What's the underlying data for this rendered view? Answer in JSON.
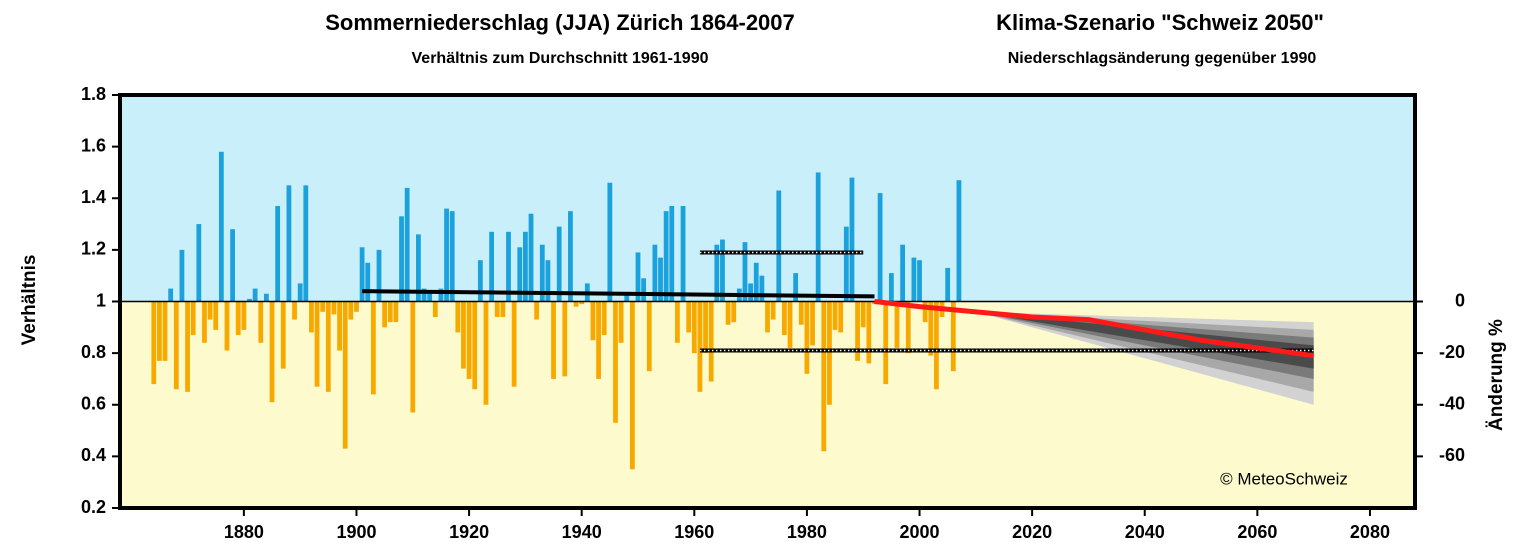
{
  "chart_data": {
    "type": "bar",
    "title": "Sommerniederschlag (JJA) Zürich 1864-2007",
    "subtitle": "Verhältnis zum Durchschnitt 1961-1990",
    "title2": "Klima-Szenario \"Schweiz 2050\"",
    "subtitle2": "Niederschlagsänderung gegenüber 1990",
    "ylabel": "Verhältnis",
    "y2label": "Änderung %",
    "annotation": "© MeteoSchweiz",
    "xlim": [
      1858,
      2088
    ],
    "xticks": [
      1880,
      1900,
      1920,
      1940,
      1960,
      1980,
      2000,
      2020,
      2040,
      2060,
      2080
    ],
    "ylim": [
      0.2,
      1.8
    ],
    "yticks": [
      0.2,
      0.4,
      0.6,
      0.8,
      1,
      1.2,
      1.4,
      1.6,
      1.8
    ],
    "y2lim": [
      -80,
      80
    ],
    "y2ticks": [
      0,
      -20,
      -40,
      -60
    ],
    "baseline": 1,
    "above_color": "#1ba1dc",
    "below_color": "#f7a900",
    "above_background": "#c9effb",
    "below_background": "#fdfbcd",
    "x": [
      1864,
      1865,
      1866,
      1867,
      1868,
      1869,
      1870,
      1871,
      1872,
      1873,
      1874,
      1875,
      1876,
      1877,
      1878,
      1879,
      1880,
      1881,
      1882,
      1883,
      1884,
      1885,
      1886,
      1887,
      1888,
      1889,
      1890,
      1891,
      1892,
      1893,
      1894,
      1895,
      1896,
      1897,
      1898,
      1899,
      1900,
      1901,
      1902,
      1903,
      1904,
      1905,
      1906,
      1907,
      1908,
      1909,
      1910,
      1911,
      1912,
      1913,
      1914,
      1915,
      1916,
      1917,
      1918,
      1919,
      1920,
      1921,
      1922,
      1923,
      1924,
      1925,
      1926,
      1927,
      1928,
      1929,
      1930,
      1931,
      1932,
      1933,
      1934,
      1935,
      1936,
      1937,
      1938,
      1939,
      1940,
      1941,
      1942,
      1943,
      1944,
      1945,
      1946,
      1947,
      1948,
      1949,
      1950,
      1951,
      1952,
      1953,
      1954,
      1955,
      1956,
      1957,
      1958,
      1959,
      1960,
      1961,
      1962,
      1963,
      1964,
      1965,
      1966,
      1967,
      1968,
      1969,
      1970,
      1971,
      1972,
      1973,
      1974,
      1975,
      1976,
      1977,
      1978,
      1979,
      1980,
      1981,
      1982,
      1983,
      1984,
      1985,
      1986,
      1987,
      1988,
      1989,
      1990,
      1991,
      1992,
      1993,
      1994,
      1995,
      1996,
      1997,
      1998,
      1999,
      2000,
      2001,
      2002,
      2003,
      2004,
      2005,
      2006,
      2007
    ],
    "values": [
      0.68,
      0.77,
      0.77,
      1.05,
      0.66,
      1.2,
      0.65,
      0.87,
      1.3,
      0.84,
      0.93,
      0.89,
      1.58,
      0.81,
      1.28,
      0.87,
      0.89,
      1.01,
      1.05,
      0.84,
      1.03,
      0.61,
      1.37,
      0.74,
      1.45,
      0.93,
      1.07,
      1.45,
      0.88,
      0.67,
      0.96,
      0.65,
      0.95,
      0.81,
      0.43,
      0.93,
      0.96,
      1.21,
      1.15,
      0.64,
      1.2,
      0.9,
      0.92,
      0.92,
      1.33,
      1.44,
      0.57,
      1.26,
      1.05,
      1.04,
      0.94,
      1.05,
      1.36,
      1.35,
      0.88,
      0.74,
      0.7,
      0.66,
      1.16,
      0.6,
      1.27,
      0.94,
      0.94,
      1.27,
      0.67,
      1.21,
      1.27,
      1.34,
      0.93,
      1.22,
      1.16,
      0.7,
      1.29,
      0.71,
      1.35,
      0.98,
      0.99,
      1.07,
      0.85,
      0.7,
      0.87,
      1.46,
      0.53,
      0.84,
      1.03,
      0.35,
      1.19,
      1.09,
      0.73,
      1.22,
      1.17,
      1.35,
      1.37,
      0.84,
      1.37,
      0.88,
      0.8,
      0.65,
      0.8,
      0.69,
      1.22,
      1.24,
      0.91,
      0.92,
      1.05,
      1.23,
      1.07,
      1.15,
      1.1,
      0.88,
      0.93,
      1.43,
      0.87,
      0.82,
      1.11,
      0.91,
      0.72,
      0.83,
      1.5,
      0.42,
      0.6,
      0.89,
      0.88,
      1.29,
      1.48,
      0.77,
      0.9,
      0.76,
      0.99,
      1.42,
      0.68,
      1.11,
      0.82,
      1.22,
      0.8,
      1.17,
      1.16,
      0.92,
      0.79,
      0.66,
      0.94,
      1.13,
      0.73,
      1.47
    ],
    "lines": [
      {
        "x": [
          1901,
          1992
        ],
        "values": [
          1.04,
          1.02
        ],
        "color": "#000000",
        "style": "solid"
      },
      {
        "x": [
          1961,
          1990
        ],
        "values": [
          1.19,
          1.19
        ],
        "color": "#000000",
        "style": "dotted"
      },
      {
        "x": [
          1961,
          2070
        ],
        "values": [
          0.81,
          0.81
        ],
        "color": "#000000",
        "style": "dotted"
      }
    ],
    "fan": {
      "x": [
        2010,
        2070
      ],
      "bands": [
        {
          "color": "#d2d2d2",
          "lower": [
            -4,
            -40
          ],
          "upper": [
            -4,
            -8
          ]
        },
        {
          "color": "#a8a8a8",
          "lower": [
            -4,
            -35
          ],
          "upper": [
            -4,
            -11
          ]
        },
        {
          "color": "#7a7a7a",
          "lower": [
            -4,
            -30
          ],
          "upper": [
            -4,
            -14
          ]
        },
        {
          "color": "#4a4a4a",
          "lower": [
            -4,
            -26
          ],
          "upper": [
            -4,
            -17
          ]
        }
      ]
    },
    "projection": {
      "x": [
        1992,
        2000,
        2010,
        2020,
        2030,
        2040,
        2050,
        2060,
        2070
      ],
      "values": [
        0,
        -2,
        -4,
        -6,
        -7,
        -11,
        -15,
        -18,
        -21
      ],
      "color": "#ff1a1a",
      "axis": "y2"
    }
  }
}
